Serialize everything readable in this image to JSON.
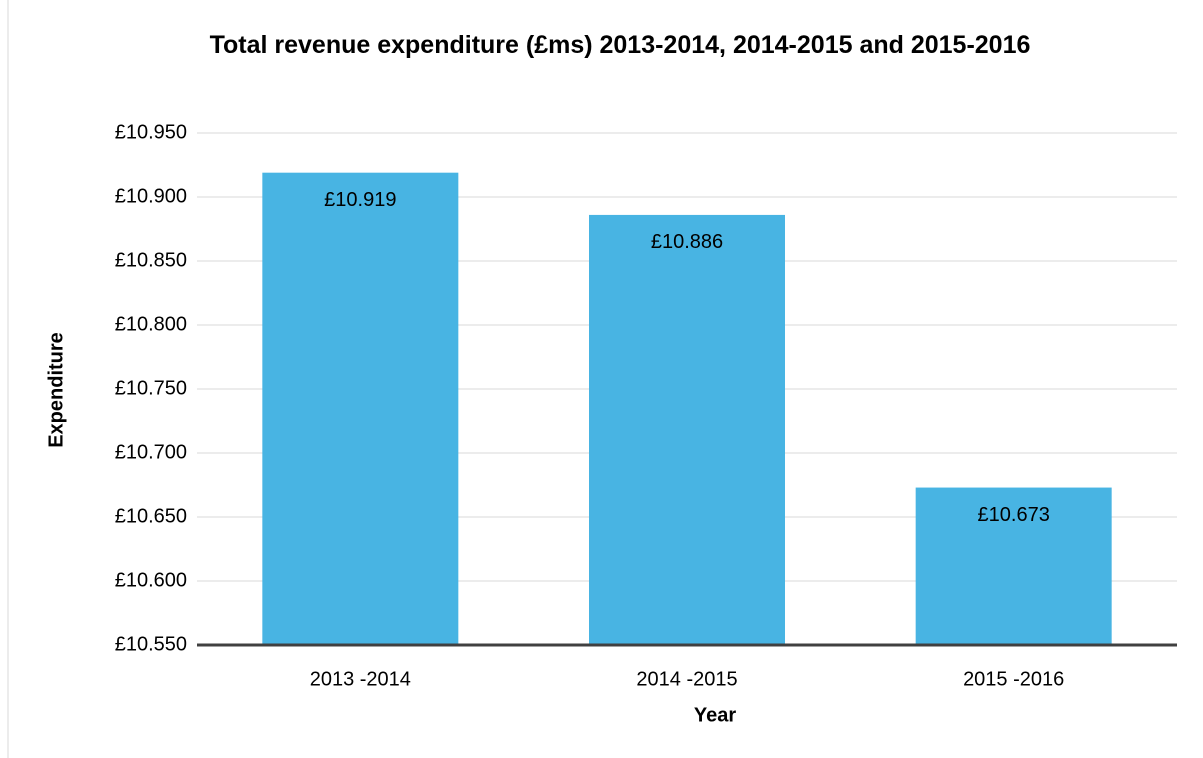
{
  "chart_data": {
    "type": "bar",
    "title": "Total revenue expenditure (£ms) 2013-2014, 2014-2015 and 2015-2016",
    "x_label": "Year",
    "y_label": "Expenditure",
    "categories": [
      "2013 -2014",
      "2014 -2015",
      "2015 -2016"
    ],
    "values": [
      10.919,
      10.886,
      10.673
    ],
    "value_labels": [
      "£10.919",
      "£10.886",
      "£10.673"
    ],
    "color": "#48b4e3",
    "ylim": [
      10.55,
      10.95
    ],
    "yticks": [
      {
        "value": 10.55,
        "label": "£10.550"
      },
      {
        "value": 10.6,
        "label": "£10.600"
      },
      {
        "value": 10.65,
        "label": "£10.650"
      },
      {
        "value": 10.7,
        "label": "£10.700"
      },
      {
        "value": 10.75,
        "label": "£10.750"
      },
      {
        "value": 10.8,
        "label": "£10.800"
      },
      {
        "value": 10.85,
        "label": "£10.850"
      },
      {
        "value": 10.9,
        "label": "£10.900"
      },
      {
        "value": 10.95,
        "label": "£10.950"
      }
    ],
    "grid": true
  }
}
